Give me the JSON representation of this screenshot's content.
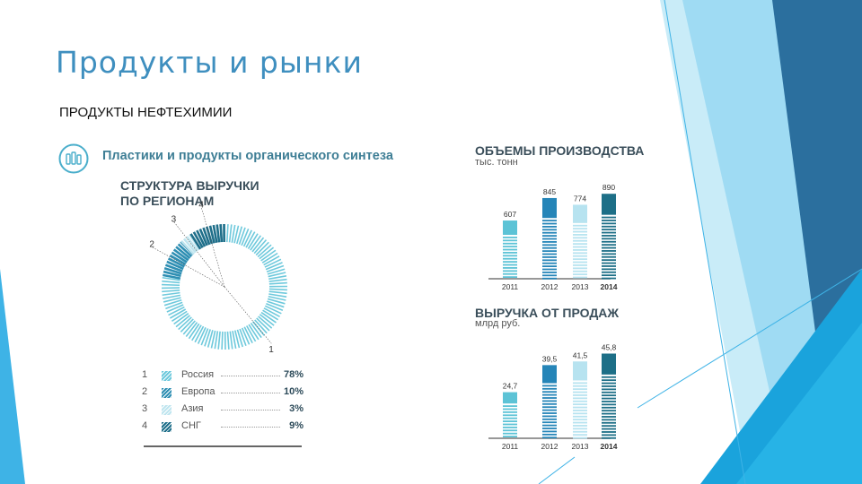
{
  "slide": {
    "title": "Продукты и рынки",
    "subtitle": "ПРОДУКТЫ НЕФТЕХИМИИ",
    "section_title": "Пластики и продукты органического синтеза",
    "section_icon": "bottles-icon",
    "accent_colors": [
      "#1ea3d8",
      "#2a6fa1",
      "#8fd2ee"
    ]
  },
  "chart_data": [
    {
      "type": "pie",
      "title": "СТРУКТУРА ВЫРУЧКИ ПО РЕГИОНАМ",
      "categories": [
        "Россия",
        "Европа",
        "Азия",
        "СНГ"
      ],
      "numbers": [
        "1",
        "2",
        "3",
        "4"
      ],
      "values": [
        78,
        10,
        3,
        9
      ],
      "value_labels": [
        "78%",
        "10%",
        "3%",
        "9%"
      ],
      "colors": [
        "#6ec9dc",
        "#2f8fb3",
        "#bfe5ef",
        "#1f6f8a"
      ],
      "legend": "bottom"
    },
    {
      "type": "bar",
      "title": "ОБЪЕМЫ ПРОИЗВОДСТВА",
      "ylabel": "тыс. тонн",
      "categories": [
        "2011",
        "2012",
        "2013",
        "2014"
      ],
      "values": [
        607,
        845,
        774,
        890
      ],
      "value_labels": [
        "607",
        "845",
        "774",
        "890"
      ],
      "ylim": [
        0,
        930
      ],
      "colors": [
        "#5cc3d6",
        "#2585b8",
        "#b7e3f0",
        "#1d6f87"
      ]
    },
    {
      "type": "bar",
      "title": "ВЫРУЧКА ОТ ПРОДАЖ",
      "ylabel": "млрд руб.",
      "categories": [
        "2011",
        "2012",
        "2013",
        "2014"
      ],
      "values": [
        24.7,
        39.5,
        41.5,
        45.8
      ],
      "value_labels": [
        "24,7",
        "39,5",
        "41,5",
        "45,8"
      ],
      "ylim": [
        0,
        48
      ],
      "colors": [
        "#5cc3d6",
        "#2585b8",
        "#b7e3f0",
        "#1d6f87"
      ]
    }
  ]
}
